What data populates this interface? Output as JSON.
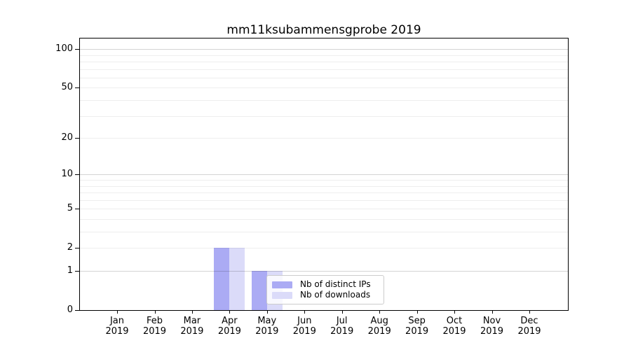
{
  "chart_data": {
    "type": "bar",
    "title": "mm11ksubammensgprobe 2019",
    "categories": [
      "Jan 2019",
      "Feb 2019",
      "Mar 2019",
      "Apr 2019",
      "May 2019",
      "Jun 2019",
      "Jul 2019",
      "Aug 2019",
      "Sep 2019",
      "Oct 2019",
      "Nov 2019",
      "Dec 2019"
    ],
    "x_months": [
      "Jan",
      "Feb",
      "Mar",
      "Apr",
      "May",
      "Jun",
      "Jul",
      "Aug",
      "Sep",
      "Oct",
      "Nov",
      "Dec"
    ],
    "x_year": "2019",
    "series": [
      {
        "name": "Nb of distinct IPs",
        "color": "#ababf4",
        "values": [
          0,
          0,
          0,
          2,
          1,
          0,
          0,
          0,
          0,
          0,
          0,
          0
        ]
      },
      {
        "name": "Nb of downloads",
        "color": "#dbdbf9",
        "values": [
          0,
          0,
          0,
          2,
          1,
          0,
          0,
          0,
          0,
          0,
          0,
          0
        ]
      }
    ],
    "y_scale": "log1p",
    "ylim": [
      0,
      124
    ],
    "y_ticks": [
      0,
      1,
      2,
      5,
      10,
      20,
      50,
      100
    ],
    "y_major_gridlines": [
      1,
      10,
      100
    ],
    "y_minor_gridlines": [
      2,
      3,
      4,
      5,
      6,
      7,
      8,
      9,
      20,
      30,
      40,
      50,
      60,
      70,
      80,
      90
    ],
    "grid": true,
    "legend_position": "lower center"
  },
  "colors": {
    "spine": "#000000",
    "background": "#ffffff",
    "grid_major": "rgba(0,0,0,0.17)",
    "grid_minor": "rgba(0,0,0,0.065)"
  }
}
